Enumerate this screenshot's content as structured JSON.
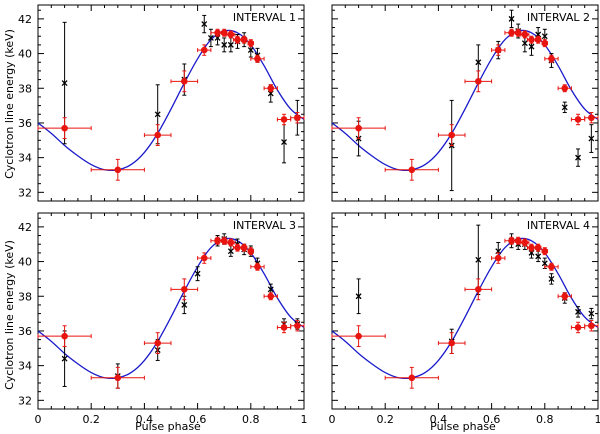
{
  "colors": {
    "model": "#1a1acc",
    "red": "#e8140f",
    "black": "#000000",
    "frame": "#000000"
  },
  "figure": {
    "ylabel": "Cyclotron line energy (keV)",
    "xlabel": "Pulse phase",
    "xticks": [
      "0",
      "0.2",
      "0.4",
      "0.6",
      "0.8",
      "1"
    ],
    "yticks": [
      "32",
      "34",
      "36",
      "38",
      "40",
      "42"
    ]
  },
  "chart_data": {
    "type": "scatter",
    "xlim": [
      0,
      1
    ],
    "ylim": [
      31.5,
      42.8
    ],
    "xlabel": "Pulse phase",
    "ylabel": "Cyclotron line energy (keV)",
    "model_curve": {
      "description": "sinusoidal model, same in all panels",
      "phase": [
        0.0,
        0.05,
        0.1,
        0.15,
        0.2,
        0.25,
        0.3,
        0.35,
        0.4,
        0.45,
        0.5,
        0.55,
        0.6,
        0.65,
        0.7,
        0.75,
        0.8,
        0.85,
        0.9,
        0.95,
        1.0
      ],
      "energy": [
        36.0,
        35.4,
        34.7,
        34.1,
        33.6,
        33.3,
        33.3,
        33.6,
        34.3,
        35.4,
        36.8,
        38.3,
        39.7,
        40.8,
        41.3,
        41.2,
        40.5,
        39.3,
        37.9,
        36.8,
        36.2
      ]
    },
    "red_series": [
      {
        "phase": 0.1,
        "energy": 35.7,
        "xerr": 0.1,
        "yerr": 0.6
      },
      {
        "phase": 0.3,
        "energy": 33.3,
        "xerr": 0.1,
        "yerr": 0.6
      },
      {
        "phase": 0.45,
        "energy": 35.3,
        "xerr": 0.05,
        "yerr": 0.6
      },
      {
        "phase": 0.55,
        "energy": 38.4,
        "xerr": 0.05,
        "yerr": 0.6
      },
      {
        "phase": 0.625,
        "energy": 40.2,
        "xerr": 0.025,
        "yerr": 0.3
      },
      {
        "phase": 0.675,
        "energy": 41.2,
        "xerr": 0.025,
        "yerr": 0.2
      },
      {
        "phase": 0.7,
        "energy": 41.2,
        "xerr": 0.01,
        "yerr": 0.2
      },
      {
        "phase": 0.725,
        "energy": 41.1,
        "xerr": 0.015,
        "yerr": 0.2
      },
      {
        "phase": 0.75,
        "energy": 40.8,
        "xerr": 0.015,
        "yerr": 0.2
      },
      {
        "phase": 0.775,
        "energy": 40.8,
        "xerr": 0.01,
        "yerr": 0.2
      },
      {
        "phase": 0.8,
        "energy": 40.6,
        "xerr": 0.01,
        "yerr": 0.2
      },
      {
        "phase": 0.825,
        "energy": 39.7,
        "xerr": 0.025,
        "yerr": 0.2
      },
      {
        "phase": 0.875,
        "energy": 38.0,
        "xerr": 0.025,
        "yerr": 0.2
      },
      {
        "phase": 0.925,
        "energy": 36.2,
        "xerr": 0.025,
        "yerr": 0.3
      },
      {
        "phase": 0.975,
        "energy": 36.3,
        "xerr": 0.025,
        "yerr": 0.3
      }
    ],
    "panels": [
      {
        "title": "INTERVAL 1",
        "black_series": [
          {
            "phase": 0.1,
            "energy": 38.3,
            "yerr": 3.5
          },
          {
            "phase": 0.45,
            "energy": 36.5,
            "yerr": 1.7
          },
          {
            "phase": 0.55,
            "energy": 38.5,
            "yerr": 0.9
          },
          {
            "phase": 0.625,
            "energy": 41.7,
            "yerr": 0.5
          },
          {
            "phase": 0.65,
            "energy": 40.9,
            "yerr": 0.5
          },
          {
            "phase": 0.675,
            "energy": 40.9,
            "yerr": 0.4
          },
          {
            "phase": 0.7,
            "energy": 40.5,
            "yerr": 0.4
          },
          {
            "phase": 0.725,
            "energy": 40.5,
            "yerr": 0.4
          },
          {
            "phase": 0.75,
            "energy": 40.7,
            "yerr": 0.4
          },
          {
            "phase": 0.775,
            "energy": 40.8,
            "yerr": 0.4
          },
          {
            "phase": 0.8,
            "energy": 40.2,
            "yerr": 0.4
          },
          {
            "phase": 0.825,
            "energy": 39.9,
            "yerr": 0.4
          },
          {
            "phase": 0.875,
            "energy": 37.7,
            "yerr": 0.5
          },
          {
            "phase": 0.925,
            "energy": 34.9,
            "yerr": 1.2
          },
          {
            "phase": 0.975,
            "energy": 36.3,
            "yerr": 1.0
          }
        ]
      },
      {
        "title": "INTERVAL 2",
        "black_series": [
          {
            "phase": 0.1,
            "energy": 35.1,
            "yerr": 1.0
          },
          {
            "phase": 0.45,
            "energy": 34.7,
            "yerr": 2.6
          },
          {
            "phase": 0.55,
            "energy": 39.5,
            "yerr": 1.0
          },
          {
            "phase": 0.625,
            "energy": 40.2,
            "yerr": 0.5
          },
          {
            "phase": 0.675,
            "energy": 42.0,
            "yerr": 0.5
          },
          {
            "phase": 0.7,
            "energy": 41.3,
            "yerr": 0.4
          },
          {
            "phase": 0.725,
            "energy": 40.6,
            "yerr": 0.5
          },
          {
            "phase": 0.75,
            "energy": 40.4,
            "yerr": 0.5
          },
          {
            "phase": 0.775,
            "energy": 41.1,
            "yerr": 0.4
          },
          {
            "phase": 0.8,
            "energy": 41.0,
            "yerr": 0.4
          },
          {
            "phase": 0.825,
            "energy": 39.6,
            "yerr": 0.4
          },
          {
            "phase": 0.875,
            "energy": 36.9,
            "yerr": 0.3
          },
          {
            "phase": 0.925,
            "energy": 34.0,
            "yerr": 0.5
          },
          {
            "phase": 0.975,
            "energy": 35.1,
            "yerr": 0.8
          }
        ]
      },
      {
        "title": "INTERVAL 3",
        "black_series": [
          {
            "phase": 0.1,
            "energy": 34.4,
            "yerr": 1.6
          },
          {
            "phase": 0.3,
            "energy": 33.4,
            "yerr": 0.7
          },
          {
            "phase": 0.45,
            "energy": 34.9,
            "yerr": 0.6
          },
          {
            "phase": 0.55,
            "energy": 37.5,
            "yerr": 0.5
          },
          {
            "phase": 0.6,
            "energy": 39.3,
            "yerr": 0.4
          },
          {
            "phase": 0.675,
            "energy": 41.2,
            "yerr": 0.3
          },
          {
            "phase": 0.7,
            "energy": 41.3,
            "yerr": 0.3
          },
          {
            "phase": 0.725,
            "energy": 40.6,
            "yerr": 0.3
          },
          {
            "phase": 0.75,
            "energy": 41.0,
            "yerr": 0.3
          },
          {
            "phase": 0.775,
            "energy": 40.7,
            "yerr": 0.3
          },
          {
            "phase": 0.8,
            "energy": 40.6,
            "yerr": 0.3
          },
          {
            "phase": 0.825,
            "energy": 39.9,
            "yerr": 0.3
          },
          {
            "phase": 0.875,
            "energy": 38.4,
            "yerr": 0.3
          },
          {
            "phase": 0.925,
            "energy": 36.4,
            "yerr": 0.3
          },
          {
            "phase": 0.975,
            "energy": 36.4,
            "yerr": 0.3
          }
        ]
      },
      {
        "title": "INTERVAL 4",
        "black_series": [
          {
            "phase": 0.1,
            "energy": 38.0,
            "yerr": 1.0
          },
          {
            "phase": 0.45,
            "energy": 35.4,
            "yerr": 0.7
          },
          {
            "phase": 0.55,
            "energy": 40.1,
            "yerr": 2.0
          },
          {
            "phase": 0.625,
            "energy": 40.6,
            "yerr": 0.5
          },
          {
            "phase": 0.675,
            "energy": 41.2,
            "yerr": 0.4
          },
          {
            "phase": 0.7,
            "energy": 41.0,
            "yerr": 0.3
          },
          {
            "phase": 0.725,
            "energy": 41.0,
            "yerr": 0.3
          },
          {
            "phase": 0.75,
            "energy": 40.5,
            "yerr": 0.3
          },
          {
            "phase": 0.775,
            "energy": 40.3,
            "yerr": 0.3
          },
          {
            "phase": 0.8,
            "energy": 39.9,
            "yerr": 0.3
          },
          {
            "phase": 0.825,
            "energy": 39.0,
            "yerr": 0.3
          },
          {
            "phase": 0.875,
            "energy": 37.9,
            "yerr": 0.3
          },
          {
            "phase": 0.925,
            "energy": 37.1,
            "yerr": 0.3
          },
          {
            "phase": 0.975,
            "energy": 37.0,
            "yerr": 0.3
          }
        ]
      }
    ]
  }
}
